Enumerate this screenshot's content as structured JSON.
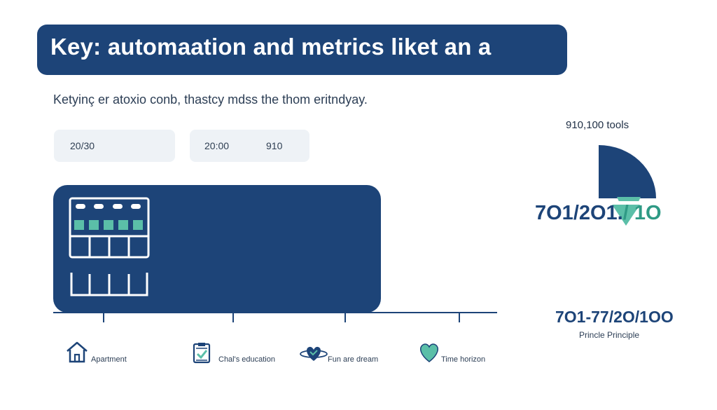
{
  "header": {
    "title": "Key: automaation and metrics liket an a",
    "subtitle": "Ketyinç er atoxio conb, thastcy mdss the thom eritndyay."
  },
  "chips": [
    {
      "text_a": "20/30"
    },
    {
      "text_a": "20:00",
      "text_b": "910"
    }
  ],
  "right_panel": {
    "tools_label": "910,100 tools",
    "ratio_main": "7O1/2O1.",
    "ratio_suffix": "/ 1O",
    "ratio_secondary": "7O1-77/2O/1OO",
    "principle_label": "Princle Principle"
  },
  "bottom_items": [
    {
      "label": "Apartment",
      "icon": "house-icon"
    },
    {
      "label": "Chal's education",
      "icon": "checklist-icon"
    },
    {
      "label": "Fun are dream",
      "icon": "heart-orbit-icon"
    },
    {
      "label": "Time horizon",
      "icon": "heart-icon"
    }
  ],
  "colors": {
    "primary": "#1d4478",
    "accent": "#5bbfa8",
    "chip_bg": "#eef2f6"
  }
}
